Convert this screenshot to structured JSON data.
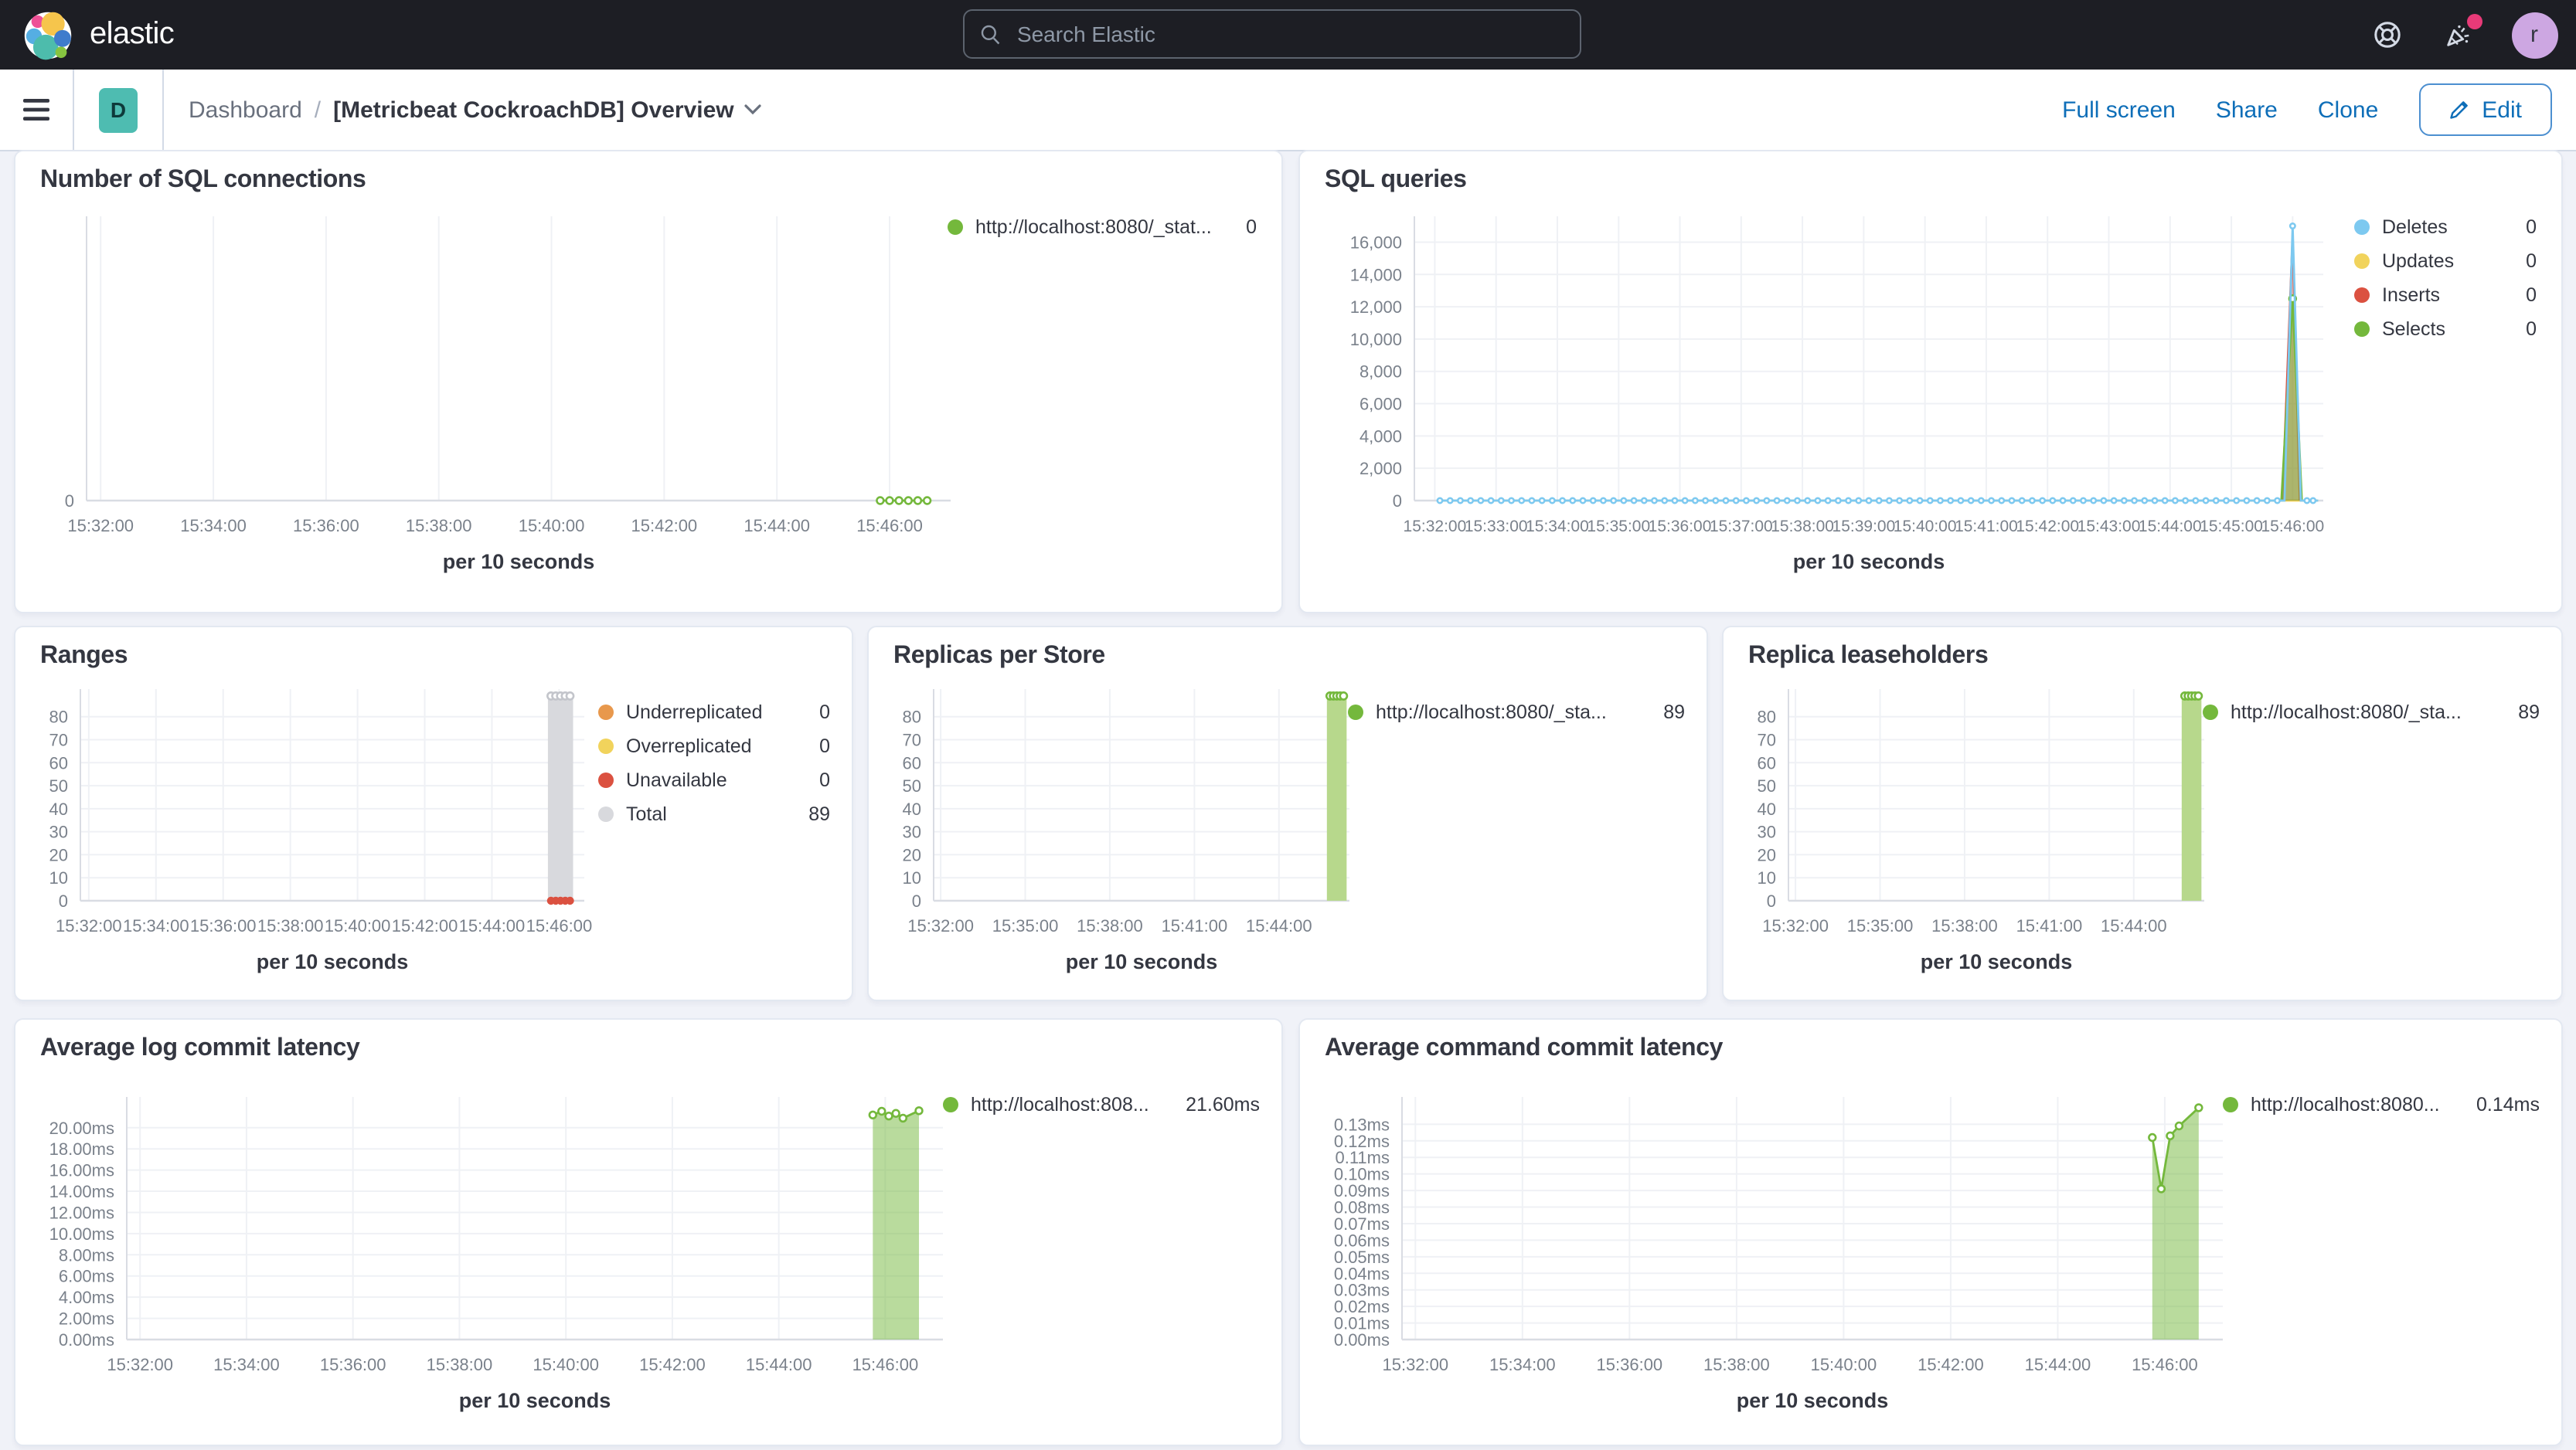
{
  "header": {
    "brand": "elastic",
    "search_placeholder": "Search Elastic",
    "icons": [
      "elastic-logo",
      "search-icon",
      "help-icon",
      "news-icon"
    ],
    "avatar_initial": "r",
    "notification_color": "#E83A78"
  },
  "breadcrumb": {
    "app_badge": "D",
    "root": "Dashboard",
    "separator": "/",
    "current": "[Metricbeat CockroachDB] Overview",
    "actions": {
      "full_screen": "Full screen",
      "share": "Share",
      "clone": "Clone",
      "edit": "Edit"
    }
  },
  "colors": {
    "green": "#74B83C",
    "light_blue": "#7DC9F0",
    "yellow": "#F1D35C",
    "red": "#DB5140",
    "orange": "#E8984C",
    "gray": "#D8D9DD",
    "link_blue": "#0E6EB8",
    "badge_teal": "#4EBCB1"
  },
  "panels": {
    "sql_connections": {
      "title": "Number of SQL connections",
      "legend": [
        {
          "color": "#74B83C",
          "label": "http://localhost:8080/_stat...",
          "value": "0"
        }
      ],
      "chart": {
        "type": "line",
        "x_domain": [
          "15:31:45",
          "15:47:05"
        ],
        "x_ticks": [
          "15:32:00",
          "15:34:00",
          "15:36:00",
          "15:38:00",
          "15:40:00",
          "15:42:00",
          "15:44:00",
          "15:46:00"
        ],
        "x_axis_label": "per 10 seconds",
        "y_max": 10,
        "y_ticks": [
          {
            "value": 0,
            "label": "0"
          }
        ],
        "series": [
          {
            "name": "http://localhost:8080/_stat...",
            "type": "line",
            "color": "#74B83C",
            "markers": true,
            "marker_radius": 2.2,
            "points": [
              [
                "15:45:50",
                0,
                1
              ],
              [
                "15:46:00",
                0,
                1
              ],
              [
                "15:46:10",
                0,
                1
              ],
              [
                "15:46:20",
                0,
                1
              ],
              [
                "15:46:30",
                0,
                1
              ],
              [
                "15:46:40",
                0,
                1
              ]
            ]
          }
        ]
      }
    },
    "sql_queries": {
      "title": "SQL queries",
      "legend": [
        {
          "color": "#7DC9F0",
          "label": "Deletes",
          "value": "0"
        },
        {
          "color": "#F1D35C",
          "label": "Updates",
          "value": "0"
        },
        {
          "color": "#DB5140",
          "label": "Inserts",
          "value": "0"
        },
        {
          "color": "#74B83C",
          "label": "Selects",
          "value": "0"
        }
      ],
      "chart": {
        "type": "line",
        "x_domain": [
          "15:31:40",
          "15:46:30"
        ],
        "x_ticks": [
          "15:32:00",
          "15:33:00",
          "15:34:00",
          "15:35:00",
          "15:36:00",
          "15:37:00",
          "15:38:00",
          "15:39:00",
          "15:40:00",
          "15:41:00",
          "15:42:00",
          "15:43:00",
          "15:44:00",
          "15:45:00",
          "15:46:00"
        ],
        "x_axis_label": "per 10 seconds",
        "y_max": 17600,
        "y_ticks": [
          {
            "value": 0,
            "label": "0"
          },
          {
            "value": 2000,
            "label": "2,000"
          },
          {
            "value": 4000,
            "label": "4,000"
          },
          {
            "value": 6000,
            "label": "6,000"
          },
          {
            "value": 8000,
            "label": "8,000"
          },
          {
            "value": 10000,
            "label": "10,000"
          },
          {
            "value": 12000,
            "label": "12,000"
          },
          {
            "value": 14000,
            "label": "14,000"
          },
          {
            "value": 16000,
            "label": "16,000"
          }
        ],
        "series": [
          {
            "name": "Updates",
            "type": "line",
            "color": "#F1D35C",
            "markers": false,
            "segments": [
              {
                "from": "15:32:05",
                "to": "15:46:25",
                "value": 0,
                "step": 0
              }
            ],
            "points": []
          },
          {
            "name": "Inserts",
            "type": "area",
            "color": "#DB5140",
            "fill": "rgba(219,81,64,0.45)",
            "points": [
              [
                "15:45:50",
                0,
                0
              ],
              [
                "15:46:00",
                16400,
                0
              ],
              [
                "15:46:07",
                0,
                0
              ]
            ]
          },
          {
            "name": "Selects",
            "type": "area",
            "color": "#74B83C",
            "fill": "rgba(116,184,60,0.55)",
            "points": [
              [
                "15:45:49",
                0,
                0
              ],
              [
                "15:46:00",
                12500,
                1
              ],
              [
                "15:46:09",
                0,
                0
              ]
            ]
          },
          {
            "name": "Deletes",
            "type": "line",
            "color": "#7DC9F0",
            "markers": true,
            "marker_radius": 1.6,
            "segments": [
              {
                "from": "15:32:05",
                "to": "15:45:45",
                "value": 0,
                "step": 10
              }
            ],
            "points": [
              [
                "15:45:52",
                0,
                0
              ],
              [
                "15:46:00",
                17000,
                1
              ],
              [
                "15:46:08",
                0,
                0
              ],
              [
                "15:46:14",
                0,
                1
              ],
              [
                "15:46:20",
                0,
                1
              ],
              [
                "15:46:25",
                0,
                0
              ]
            ]
          }
        ]
      }
    },
    "ranges": {
      "title": "Ranges",
      "legend": [
        {
          "color": "#E8984C",
          "label": "Underreplicated",
          "value": "0"
        },
        {
          "color": "#F1D35C",
          "label": "Overreplicated",
          "value": "0"
        },
        {
          "color": "#DB5140",
          "label": "Unavailable",
          "value": "0"
        },
        {
          "color": "#D8D9DD",
          "label": "Total",
          "value": "89"
        }
      ],
      "chart": {
        "type": "bar",
        "x_domain": [
          "15:31:45",
          "15:46:45"
        ],
        "x_ticks": [
          "15:32:00",
          "15:34:00",
          "15:36:00",
          "15:38:00",
          "15:40:00",
          "15:42:00",
          "15:44:00",
          "15:46:00"
        ],
        "x_axis_label": "per 10 seconds",
        "y_max": 92,
        "y_ticks": [
          {
            "value": 0,
            "label": "0"
          },
          {
            "value": 10,
            "label": "10"
          },
          {
            "value": 20,
            "label": "20"
          },
          {
            "value": 30,
            "label": "30"
          },
          {
            "value": 40,
            "label": "40"
          },
          {
            "value": 50,
            "label": "50"
          },
          {
            "value": 60,
            "label": "60"
          },
          {
            "value": 70,
            "label": "70"
          },
          {
            "value": 80,
            "label": "80"
          }
        ],
        "series": [
          {
            "name": "Total",
            "type": "bar",
            "color": "#D8D9DD",
            "marker_color": "#C3C5CB",
            "from": "15:45:40",
            "to": "15:46:25",
            "value": 89,
            "marker_count": 5
          },
          {
            "name": "Unavailable",
            "type": "dots",
            "color": "#DB5140",
            "radius": 2.6,
            "from": "15:45:40",
            "to": "15:46:25",
            "value": 0,
            "count": 5
          }
        ]
      }
    },
    "replicas": {
      "title": "Replicas per Store",
      "legend": [
        {
          "color": "#74B83C",
          "label": "http://localhost:8080/_sta...",
          "value": "89"
        }
      ],
      "chart": {
        "type": "bar",
        "x_domain": [
          "15:31:45",
          "15:46:30"
        ],
        "x_ticks": [
          "15:32:00",
          "15:35:00",
          "15:38:00",
          "15:41:00",
          "15:44:00"
        ],
        "x_axis_label": "per 10 seconds",
        "y_max": 92,
        "y_ticks": [
          {
            "value": 0,
            "label": "0"
          },
          {
            "value": 10,
            "label": "10"
          },
          {
            "value": 20,
            "label": "20"
          },
          {
            "value": 30,
            "label": "30"
          },
          {
            "value": 40,
            "label": "40"
          },
          {
            "value": 50,
            "label": "50"
          },
          {
            "value": 60,
            "label": "60"
          },
          {
            "value": 70,
            "label": "70"
          },
          {
            "value": 80,
            "label": "80"
          }
        ],
        "series": [
          {
            "name": "http://localhost:8080/_sta...",
            "type": "bar",
            "color": "#B7D88C",
            "marker_color": "#74B83C",
            "from": "15:45:42",
            "to": "15:46:24",
            "value": 89,
            "marker_count": 5
          }
        ]
      }
    },
    "leaseholders": {
      "title": "Replica leaseholders",
      "legend": [
        {
          "color": "#74B83C",
          "label": "http://localhost:8080/_sta...",
          "value": "89"
        }
      ],
      "chart": {
        "type": "bar",
        "x_domain": [
          "15:31:45",
          "15:46:30"
        ],
        "x_ticks": [
          "15:32:00",
          "15:35:00",
          "15:38:00",
          "15:41:00",
          "15:44:00"
        ],
        "x_axis_label": "per 10 seconds",
        "y_max": 92,
        "y_ticks": [
          {
            "value": 0,
            "label": "0"
          },
          {
            "value": 10,
            "label": "10"
          },
          {
            "value": 20,
            "label": "20"
          },
          {
            "value": 30,
            "label": "30"
          },
          {
            "value": 40,
            "label": "40"
          },
          {
            "value": 50,
            "label": "50"
          },
          {
            "value": 60,
            "label": "60"
          },
          {
            "value": 70,
            "label": "70"
          },
          {
            "value": 80,
            "label": "80"
          }
        ],
        "series": [
          {
            "name": "http://localhost:8080/_sta...",
            "type": "bar",
            "color": "#B7D88C",
            "marker_color": "#74B83C",
            "from": "15:45:42",
            "to": "15:46:24",
            "value": 89,
            "marker_count": 5
          }
        ]
      }
    },
    "log_latency": {
      "title": "Average log commit latency",
      "legend": [
        {
          "color": "#74B83C",
          "label": "http://localhost:808...",
          "value": "21.60ms"
        }
      ],
      "chart": {
        "type": "area",
        "x_domain": [
          "15:31:45",
          "15:47:05"
        ],
        "x_ticks": [
          "15:32:00",
          "15:34:00",
          "15:36:00",
          "15:38:00",
          "15:40:00",
          "15:42:00",
          "15:44:00",
          "15:46:00"
        ],
        "x_axis_label": "per 10 seconds",
        "y_max": 22.9,
        "y_ticks": [
          {
            "value": 0,
            "label": "0.00ms"
          },
          {
            "value": 2,
            "label": "2.00ms"
          },
          {
            "value": 4,
            "label": "4.00ms"
          },
          {
            "value": 6,
            "label": "6.00ms"
          },
          {
            "value": 8,
            "label": "8.00ms"
          },
          {
            "value": 10,
            "label": "10.00ms"
          },
          {
            "value": 12,
            "label": "12.00ms"
          },
          {
            "value": 14,
            "label": "14.00ms"
          },
          {
            "value": 16,
            "label": "16.00ms"
          },
          {
            "value": 18,
            "label": "18.00ms"
          },
          {
            "value": 20,
            "label": "20.00ms"
          }
        ],
        "series": [
          {
            "name": "http://localhost:808...",
            "type": "area",
            "color": "#74B83C",
            "fill": "rgba(116,184,60,0.5)",
            "points": [
              [
                "15:45:46",
                21.2,
                1
              ],
              [
                "15:45:56",
                21.55,
                1
              ],
              [
                "15:46:04",
                21.1,
                1
              ],
              [
                "15:46:12",
                21.35,
                1
              ],
              [
                "15:46:20",
                20.9,
                1
              ],
              [
                "15:46:38",
                21.6,
                1
              ]
            ]
          }
        ]
      }
    },
    "cmd_latency": {
      "title": "Average command commit latency",
      "legend": [
        {
          "color": "#74B83C",
          "label": "http://localhost:8080...",
          "value": "0.14ms"
        }
      ],
      "chart": {
        "type": "area",
        "x_domain": [
          "15:31:45",
          "15:47:05"
        ],
        "x_ticks": [
          "15:32:00",
          "15:34:00",
          "15:36:00",
          "15:38:00",
          "15:40:00",
          "15:42:00",
          "15:44:00",
          "15:46:00"
        ],
        "x_axis_label": "per 10 seconds",
        "y_max": 0.1465,
        "y_ticks": [
          {
            "value": 0,
            "label": "0.00ms"
          },
          {
            "value": 0.01,
            "label": "0.01ms"
          },
          {
            "value": 0.02,
            "label": "0.02ms"
          },
          {
            "value": 0.03,
            "label": "0.03ms"
          },
          {
            "value": 0.04,
            "label": "0.04ms"
          },
          {
            "value": 0.05,
            "label": "0.05ms"
          },
          {
            "value": 0.06,
            "label": "0.06ms"
          },
          {
            "value": 0.07,
            "label": "0.07ms"
          },
          {
            "value": 0.08,
            "label": "0.08ms"
          },
          {
            "value": 0.09,
            "label": "0.09ms"
          },
          {
            "value": 0.1,
            "label": "0.10ms"
          },
          {
            "value": 0.11,
            "label": "0.11ms"
          },
          {
            "value": 0.12,
            "label": "0.12ms"
          },
          {
            "value": 0.13,
            "label": "0.13ms"
          }
        ],
        "series": [
          {
            "name": "http://localhost:8080...",
            "type": "area",
            "color": "#74B83C",
            "fill": "rgba(116,184,60,0.5)",
            "points": [
              [
                "15:45:46",
                0.122,
                1
              ],
              [
                "15:45:56",
                0.091,
                1
              ],
              [
                "15:46:06",
                0.123,
                1
              ],
              [
                "15:46:16",
                0.129,
                1
              ],
              [
                "15:46:38",
                0.14,
                1
              ]
            ]
          }
        ]
      }
    }
  }
}
